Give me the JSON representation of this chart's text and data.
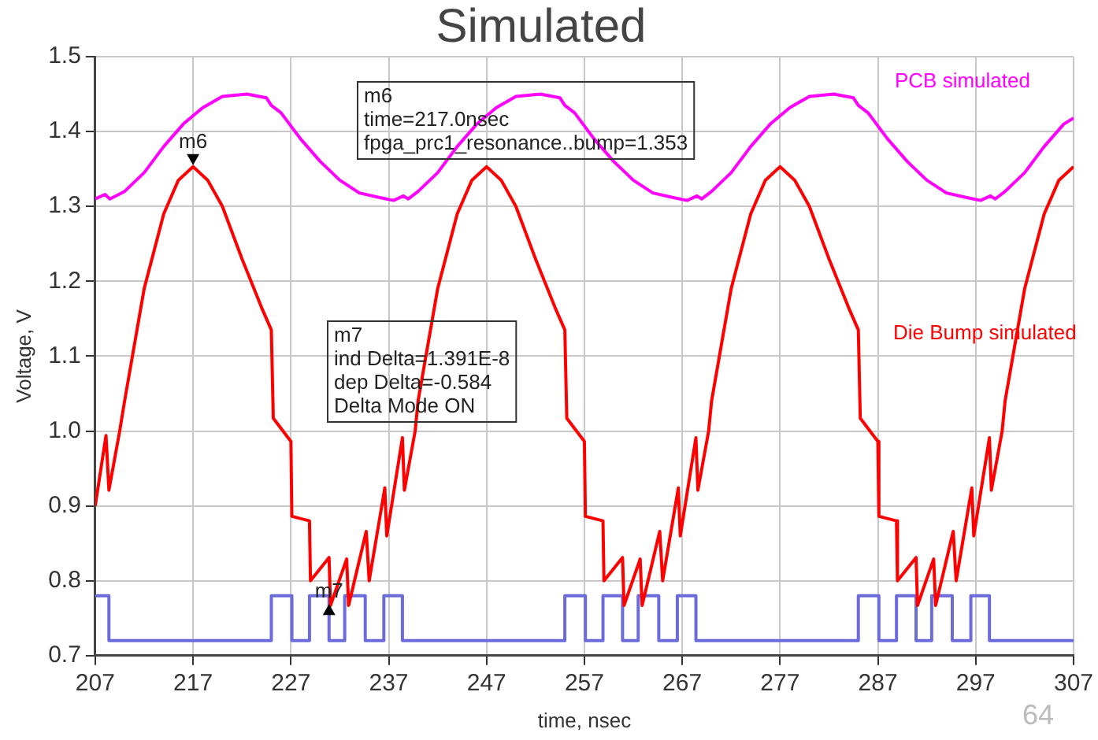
{
  "chart_data": {
    "type": "line",
    "title": "Simulated",
    "xlabel": "time, nsec",
    "ylabel": "Voltage, V",
    "xlim": [
      207,
      307
    ],
    "xticks": [
      207,
      217,
      227,
      237,
      247,
      257,
      267,
      277,
      287,
      297,
      307
    ],
    "ylim": [
      0.7,
      1.5
    ],
    "yticks": [
      0.7,
      0.8,
      0.9,
      {
        "value": 1,
        "label": "1.0"
      },
      1.1,
      1.2,
      1.3,
      1.4,
      1.5
    ],
    "grid": true,
    "legend": false,
    "marker": "none",
    "line_style": "solid",
    "series": [
      {
        "name": "PCB simulated",
        "color": "#ff00ff",
        "x": [
          207,
          208,
          208.5,
          210,
          212,
          214,
          216,
          218,
          220,
          222.5,
          224.5,
          225,
          226,
          228,
          230,
          232,
          234,
          236,
          237.5,
          238.5,
          239,
          240,
          242,
          244,
          246,
          248,
          250,
          252.5,
          254.5,
          255,
          256,
          258,
          260,
          262,
          264,
          266,
          267.5,
          268.5,
          269,
          270,
          272,
          274,
          276,
          278,
          280,
          282.5,
          284.5,
          285,
          286,
          288,
          290,
          292,
          294,
          296,
          297.5,
          298.5,
          299,
          300,
          302,
          304,
          306,
          307
        ],
        "values": [
          1.31,
          1.316,
          1.31,
          1.32,
          1.345,
          1.38,
          1.41,
          1.432,
          1.447,
          1.45,
          1.445,
          1.435,
          1.425,
          1.39,
          1.36,
          1.335,
          1.318,
          1.312,
          1.308,
          1.314,
          1.31,
          1.32,
          1.345,
          1.38,
          1.41,
          1.432,
          1.447,
          1.45,
          1.445,
          1.435,
          1.425,
          1.39,
          1.36,
          1.335,
          1.318,
          1.312,
          1.308,
          1.314,
          1.31,
          1.32,
          1.345,
          1.38,
          1.41,
          1.432,
          1.447,
          1.45,
          1.445,
          1.435,
          1.425,
          1.39,
          1.36,
          1.335,
          1.318,
          1.312,
          1.308,
          1.314,
          1.31,
          1.32,
          1.345,
          1.38,
          1.41,
          1.418
        ]
      },
      {
        "name": "Die Bump simulated",
        "color": "#ff0000",
        "x": [
          207,
          208.1,
          208.4,
          209.5,
          210,
          212,
          214,
          215.5,
          217,
          218.5,
          220,
          222,
          224,
          225,
          225.2,
          227,
          227.1,
          228.9,
          229,
          230.9,
          231.05,
          232.7,
          232.9,
          234.7,
          235,
          236.6,
          236.8,
          238.4,
          238.6,
          239.7,
          240,
          242,
          244,
          245.5,
          247,
          248.5,
          250,
          252,
          254,
          255,
          255.2,
          257,
          257.1,
          258.9,
          259,
          260.9,
          261.05,
          262.7,
          262.9,
          264.7,
          265,
          266.6,
          266.8,
          268.4,
          268.6,
          269.7,
          270,
          272,
          274,
          275.5,
          277,
          278.5,
          280,
          282,
          284,
          285,
          285.2,
          287,
          287.1,
          288.9,
          289,
          290.9,
          291.05,
          292.7,
          292.9,
          294.7,
          295,
          296.6,
          296.8,
          298.4,
          298.6,
          299.7,
          300,
          302,
          304,
          305.5,
          307
        ],
        "values": [
          0.9,
          0.994,
          0.921,
          1.0,
          1.04,
          1.19,
          1.29,
          1.335,
          1.353,
          1.335,
          1.3,
          1.23,
          1.165,
          1.135,
          1.017,
          0.986,
          0.886,
          0.88,
          0.8,
          0.831,
          0.767,
          0.829,
          0.767,
          0.866,
          0.8,
          0.924,
          0.86,
          0.991,
          0.921,
          1.0,
          1.04,
          1.19,
          1.29,
          1.335,
          1.353,
          1.335,
          1.3,
          1.23,
          1.165,
          1.135,
          1.017,
          0.986,
          0.886,
          0.88,
          0.8,
          0.831,
          0.767,
          0.829,
          0.767,
          0.866,
          0.8,
          0.924,
          0.86,
          0.991,
          0.921,
          1.0,
          1.04,
          1.19,
          1.29,
          1.335,
          1.353,
          1.335,
          1.3,
          1.23,
          1.165,
          1.135,
          1.017,
          0.986,
          0.886,
          0.88,
          0.8,
          0.831,
          0.767,
          0.829,
          0.767,
          0.866,
          0.8,
          0.924,
          0.86,
          0.991,
          0.921,
          1.0,
          1.04,
          1.19,
          1.29,
          1.335,
          1.353
        ]
      },
      {
        "color": "#6b6bdb",
        "x": [
          207,
          208.4,
          208.4,
          225,
          225,
          227.1,
          227.1,
          228.9,
          228.9,
          230.9,
          230.9,
          232.5,
          232.5,
          234.6,
          234.6,
          236.5,
          236.5,
          238.4,
          238.4,
          255,
          255,
          257.1,
          257.1,
          258.9,
          258.9,
          260.9,
          260.9,
          262.5,
          262.5,
          264.6,
          264.6,
          266.5,
          266.5,
          268.4,
          268.4,
          285,
          285,
          287.1,
          287.1,
          288.9,
          288.9,
          290.9,
          290.9,
          292.5,
          292.5,
          294.6,
          294.6,
          296.5,
          296.5,
          298.4,
          298.4,
          307
        ],
        "values": [
          0.78,
          0.78,
          0.72,
          0.72,
          0.78,
          0.78,
          0.72,
          0.72,
          0.78,
          0.78,
          0.72,
          0.72,
          0.78,
          0.78,
          0.72,
          0.72,
          0.78,
          0.78,
          0.72,
          0.72,
          0.78,
          0.78,
          0.72,
          0.72,
          0.78,
          0.78,
          0.72,
          0.72,
          0.78,
          0.78,
          0.72,
          0.72,
          0.78,
          0.78,
          0.72,
          0.72,
          0.78,
          0.78,
          0.72,
          0.72,
          0.78,
          0.78,
          0.72,
          0.72,
          0.78,
          0.78,
          0.72,
          0.72,
          0.78,
          0.78,
          0.72,
          0.72
        ]
      }
    ],
    "annotations": [
      {
        "text": "m6",
        "x": 217,
        "y": 1.353
      },
      {
        "text": "m7",
        "x": 230.9,
        "y": 0.769
      },
      "m6\ntime=217.0nsec\nfpga_prc1_resonance..bump=1.353",
      "m7\nind Delta=1.391E-8\ndep Delta=-0.584\nDelta Mode ON",
      "64"
    ]
  }
}
